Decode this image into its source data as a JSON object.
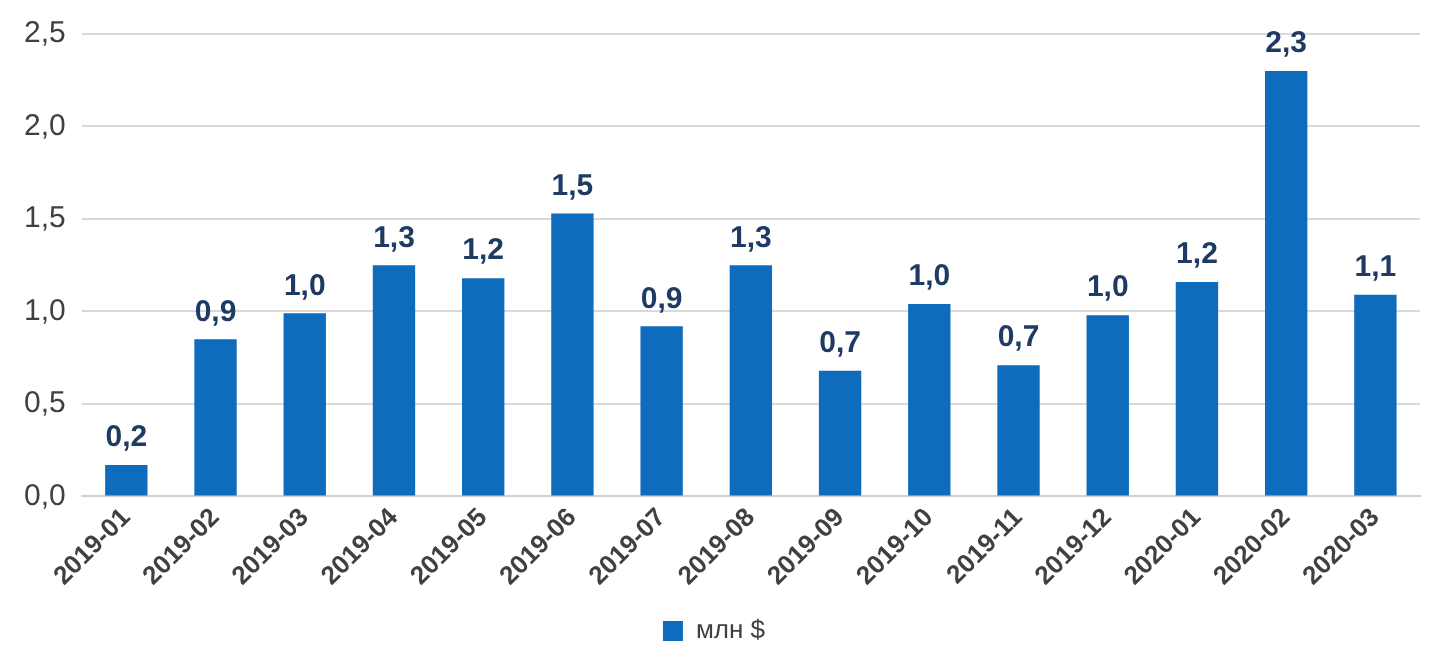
{
  "chart_data": {
    "type": "bar",
    "categories": [
      "2019-01",
      "2019-02",
      "2019-03",
      "2019-04",
      "2019-05",
      "2019-06",
      "2019-07",
      "2019-08",
      "2019-09",
      "2019-10",
      "2019-11",
      "2019-12",
      "2020-01",
      "2020-02",
      "2020-03"
    ],
    "series": [
      {
        "name": "млн $",
        "color": "#0f6cbd",
        "values": [
          0.17,
          0.85,
          0.99,
          1.25,
          1.18,
          1.53,
          0.92,
          1.25,
          0.68,
          1.04,
          0.71,
          0.98,
          1.16,
          2.3,
          1.09
        ],
        "value_labels": [
          "0,2",
          "0,9",
          "1,0",
          "1,3",
          "1,2",
          "1,5",
          "0,9",
          "1,3",
          "0,7",
          "1,0",
          "0,7",
          "1,0",
          "1,2",
          "2,3",
          "1,1"
        ]
      }
    ],
    "ylim": [
      0,
      2.5
    ],
    "yticks": [
      {
        "value": 0,
        "label": "0,0"
      },
      {
        "value": 0.5,
        "label": "0,5"
      },
      {
        "value": 1,
        "label": "1,0"
      },
      {
        "value": 1.5,
        "label": "1,5"
      },
      {
        "value": 2,
        "label": "2,0"
      },
      {
        "value": 2.5,
        "label": "2,5"
      }
    ],
    "grid": "y",
    "legend": "bottom"
  }
}
